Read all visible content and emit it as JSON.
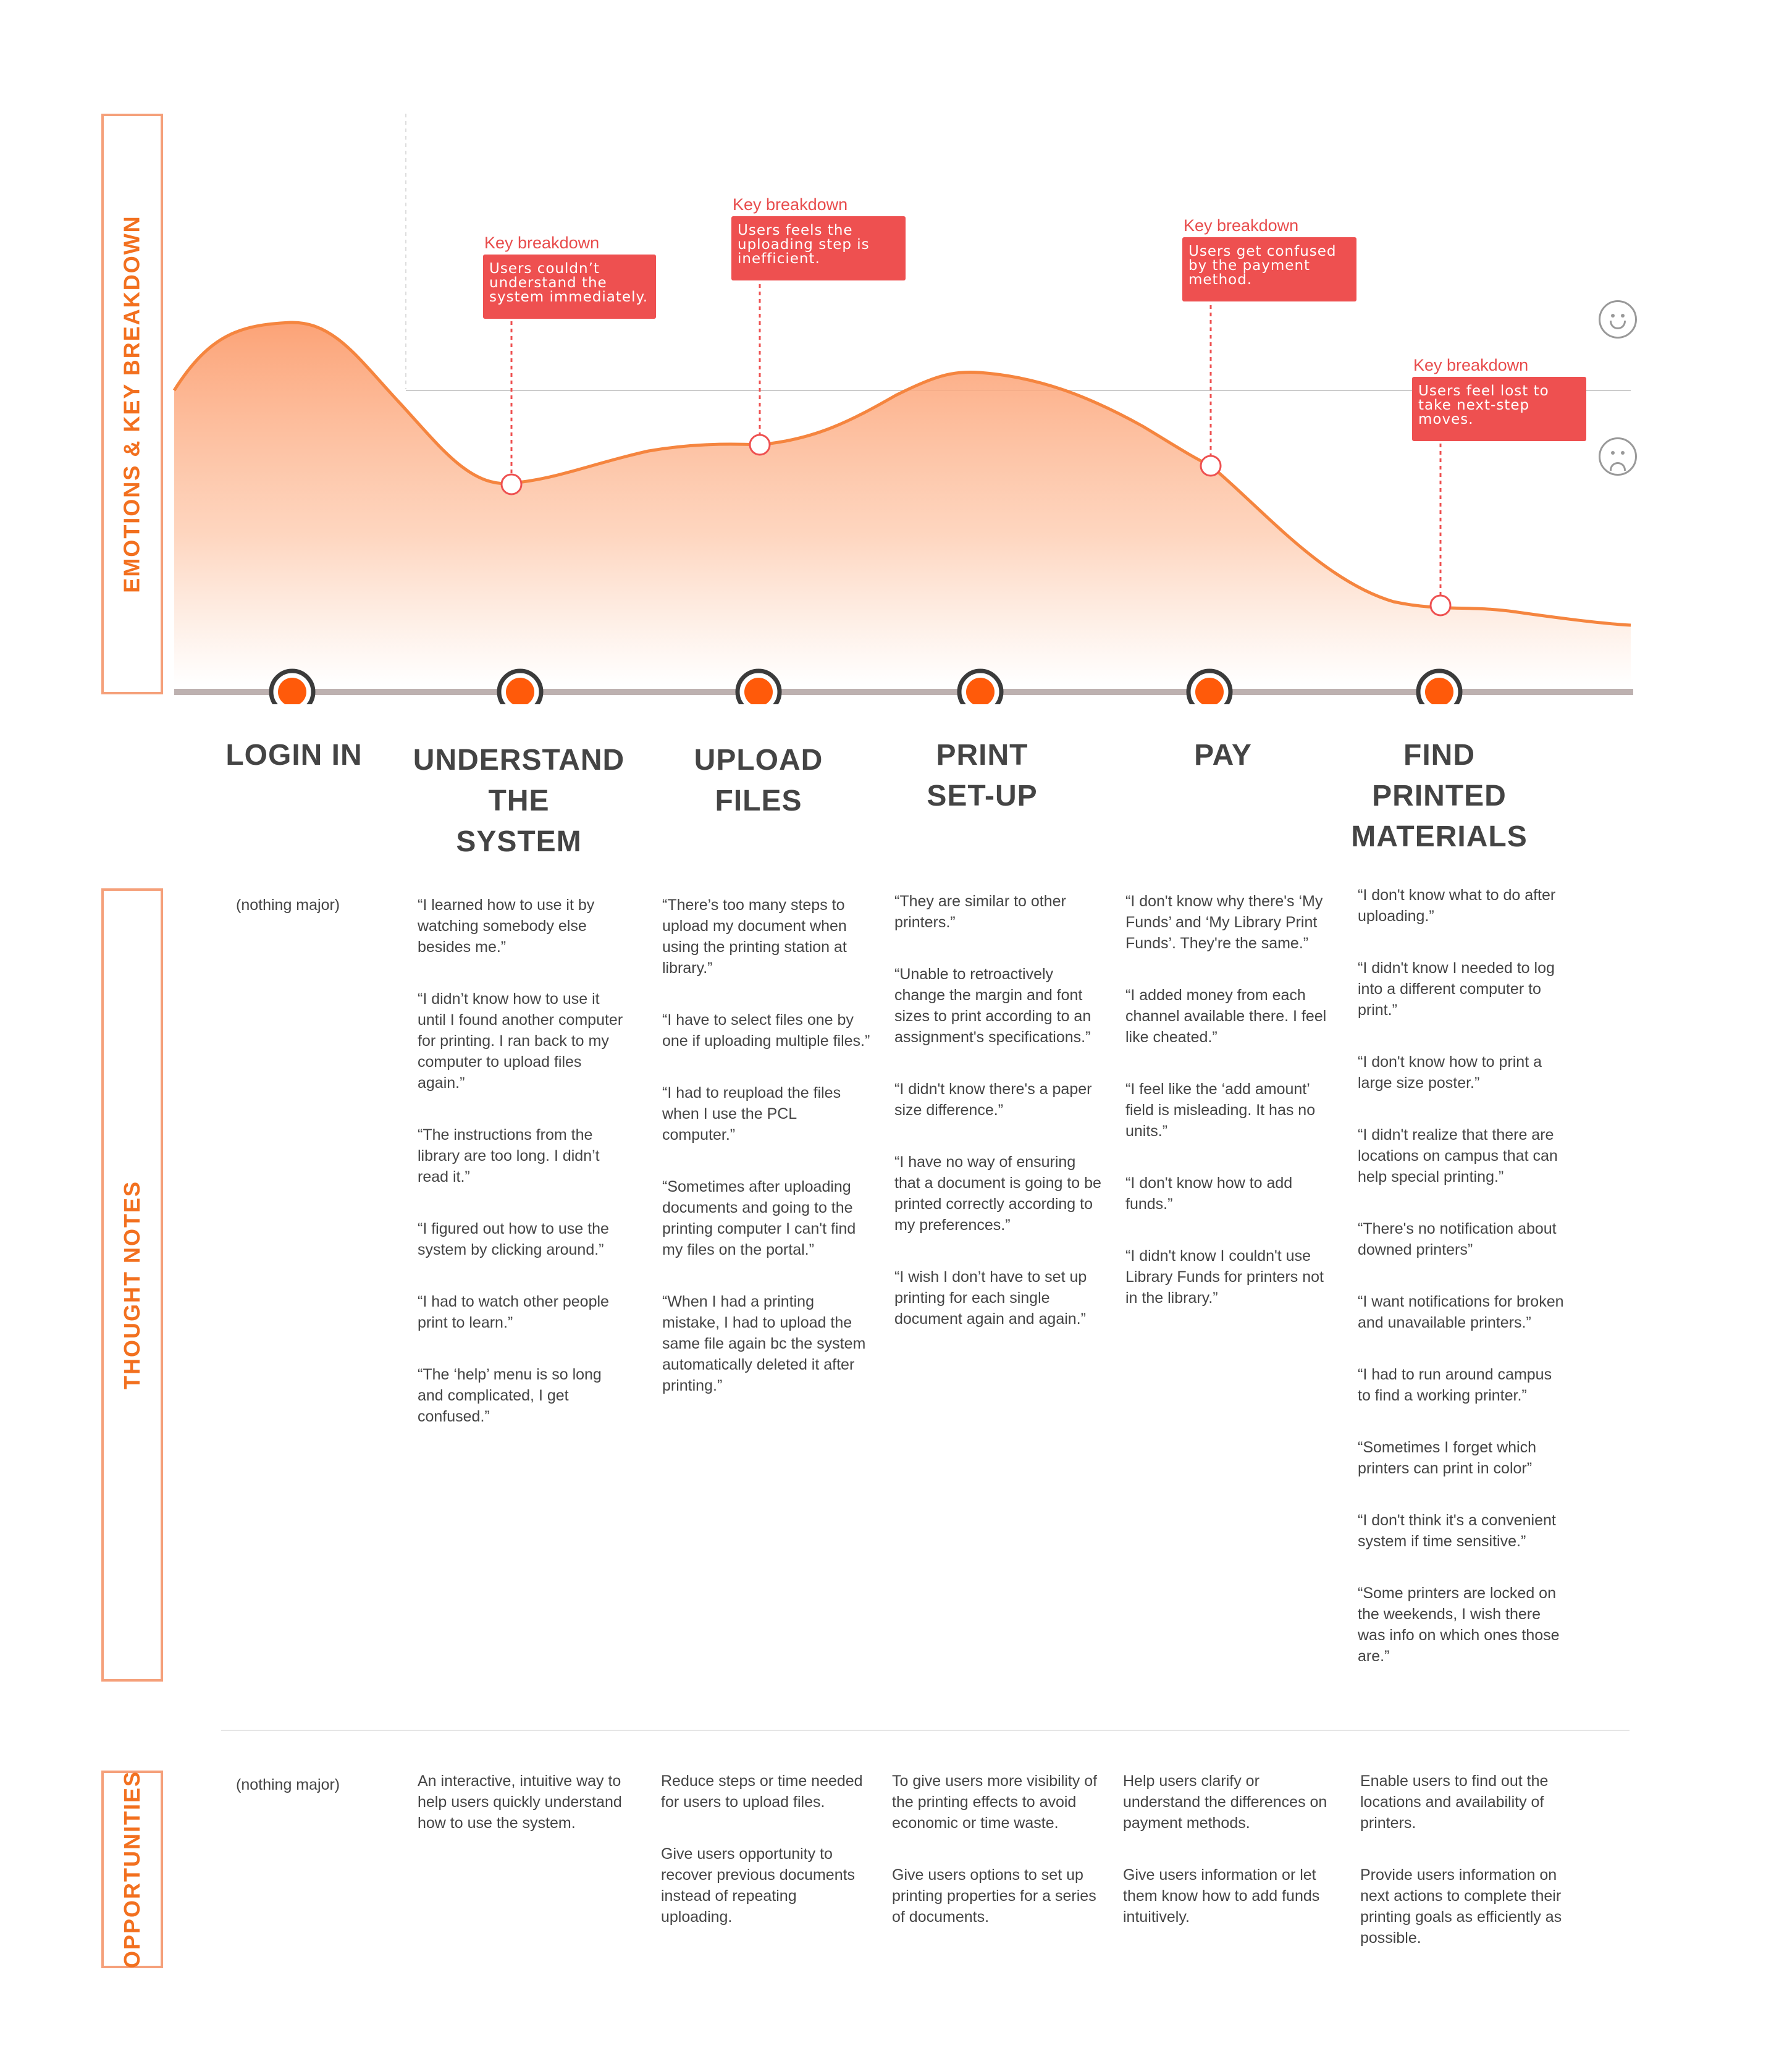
{
  "sections": {
    "emotions": "EMOTIONS & KEY BREAKDOWN",
    "thoughts": "THOUGHT NOTES",
    "opportunities": "OPPORTUNITIES"
  },
  "colors": {
    "accent": "#f2701f",
    "curve": "#f5853f",
    "breakdown": "#ee5050",
    "stage_dot": "#ff5a0a"
  },
  "stages": [
    {
      "title": "LOGIN IN"
    },
    {
      "title": "UNDERSTAND\nTHE\nSYSTEM"
    },
    {
      "title": "UPLOAD\nFILES"
    },
    {
      "title": "PRINT\nSET-UP"
    },
    {
      "title": "PAY"
    },
    {
      "title": "FIND\nPRINTED\nMATERIALS"
    }
  ],
  "breakdowns": [
    {
      "label": "Key breakdown",
      "text": "Users couldn’t\nunderstand the\nsystem immediately."
    },
    {
      "label": "Key breakdown",
      "text": "Users feels the\nuploading step is\ninefficient."
    },
    {
      "label": "Key breakdown",
      "text": "Users get confused\nby the payment\nmethod."
    },
    {
      "label": "Key breakdown",
      "text": "Users feel lost to\ntake next-step\nmoves."
    }
  ],
  "emotion_scale": [
    "smiley-icon",
    "frown-icon"
  ],
  "thoughts": [
    [
      "(nothing major)"
    ],
    [
      "“I learned how to use it by watching somebody else besides me.”",
      "“I didn’t know how to use it until I found another computer for printing. I ran back to my computer to upload files again.”",
      "“The instructions from the library are too long. I didn’t read it.”",
      "“I figured out how to use the system by clicking around.”",
      "“I had to watch other people print to learn.”",
      "“The ‘help’ menu is so long and complicated, I get confused.”"
    ],
    [
      "“There’s too many steps to upload my document when using the printing station at library.”",
      "“I have to select files one by one if uploading multiple files.”",
      "“I had to reupload the files when I use the PCL computer.”",
      "“Sometimes after uploading documents and going to the printing computer I can't find my files on the portal.”",
      "“When I had a printing mistake, I had to upload the same file again bc the system automatically deleted it after printing.”"
    ],
    [
      "“They are similar to other printers.”",
      "“Unable to retroactively change the margin and font sizes to print according to an assignment's specifications.”",
      "“I didn't know there's a paper size difference.”",
      "“I have no way of ensuring that a document is going to be printed correctly according to my preferences.”",
      "“I wish I don’t have to set up printing for each single document again and again.”"
    ],
    [
      "“I don't know why there's ‘My Funds’ and ‘My Library Print Funds’. They're the same.”",
      "“I added money from each channel available there. I feel like cheated.”",
      "“I feel like the ‘add amount’ field is misleading. It has no units.”",
      "“I don't know how to add funds.”",
      "“I didn't know I couldn't use Library Funds for printers not in the library.”"
    ],
    [
      "“I don't know what to do after uploading.”",
      "“I didn't know I needed to log into a different computer to print.”",
      "“I don't know how to print a large size poster.”",
      "“I didn't realize that there are locations on campus that can help special printing.”",
      "“There's no notification about downed printers”",
      "“I want notifications for broken and unavailable printers.”",
      "“I had to run around campus to find a working printer.”",
      "“Sometimes I forget which printers can print in color”",
      "“I don't think it's a convenient system if time sensitive.”",
      "“Some printers are locked on the weekends, I wish there was info on which ones those are.”"
    ]
  ],
  "opportunities": [
    [
      "(nothing major)"
    ],
    [
      "An interactive, intuitive way to help users quickly understand how to use the system."
    ],
    [
      "Reduce steps or time needed for users to upload files.",
      "Give users opportunity to recover previous documents instead of repeating uploading."
    ],
    [
      "To give users more visibility of the printing effects to avoid economic or time waste.",
      "Give users options to set up printing properties for a series of documents."
    ],
    [
      "Help users clarify or understand the differences on payment methods.",
      "Give users information or let them know how to add funds intuitively."
    ],
    [
      "Enable users to find out the locations and availability of printers.",
      "Provide users information on next actions to complete their printing goals as efficiently as possible."
    ]
  ]
}
